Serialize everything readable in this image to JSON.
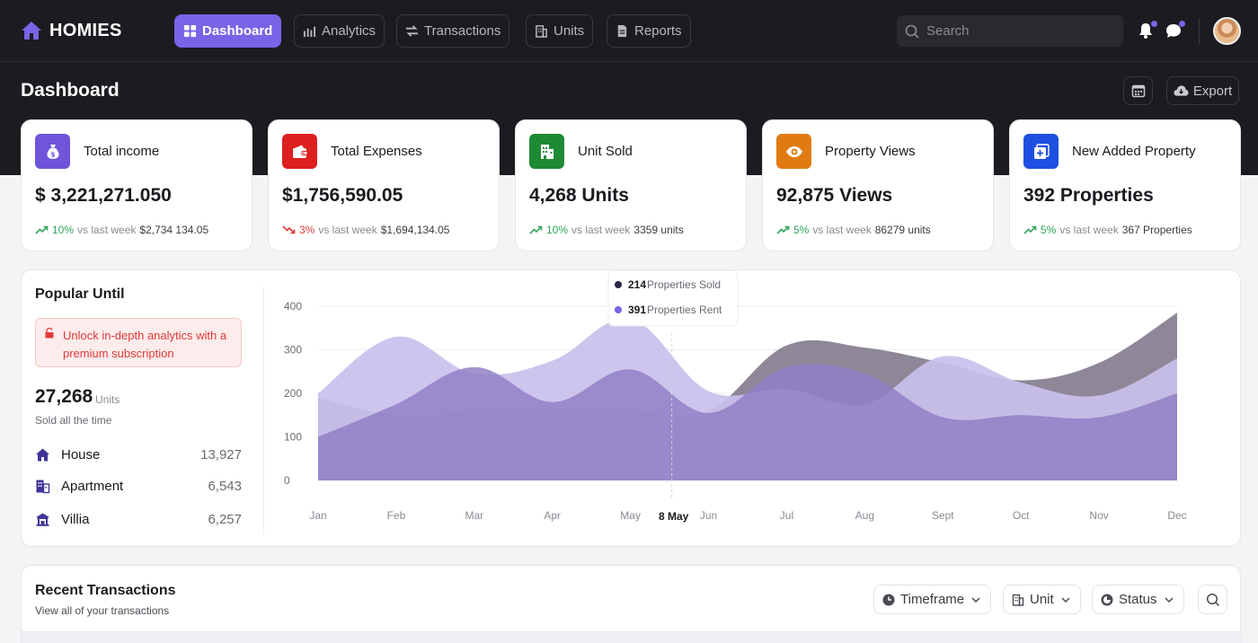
{
  "brand": {
    "name": "HOMIES"
  },
  "nav": [
    {
      "label": "Dashboard",
      "icon": "grid-icon",
      "active": true
    },
    {
      "label": "Analytics",
      "icon": "bar-chart-icon"
    },
    {
      "label": "Transactions",
      "icon": "swap-arrows-icon"
    },
    {
      "label": "Units",
      "icon": "building-icon"
    },
    {
      "label": "Reports",
      "icon": "document-icon"
    }
  ],
  "search": {
    "placeholder": "Search"
  },
  "page": {
    "title": "Dashboard",
    "export_label": "Export"
  },
  "cards": [
    {
      "label": "Total income",
      "value": "$ 3,221,271.050",
      "pct": "10%",
      "trend": "up",
      "vs": "vs last week",
      "ref": "$2,734 134.05",
      "color": "#6f55d9",
      "icon": "money-bag-icon"
    },
    {
      "label": "Total Expenses",
      "value": "$1,756,590.05",
      "pct": "3%",
      "trend": "down",
      "vs": "vs last week",
      "ref": "$1,694,134.05",
      "color": "#dd1f1f",
      "icon": "wallet-icon"
    },
    {
      "label": "Unit Sold",
      "value": "4,268 Units",
      "pct": "10%",
      "trend": "up",
      "vs": "vs last week",
      "ref": "3359 units",
      "color": "#1e8a34",
      "icon": "building-icon"
    },
    {
      "label": "Property Views",
      "value": "92,875 Views",
      "pct": "5%",
      "trend": "up",
      "vs": "vs last week",
      "ref": "86279 units",
      "color": "#e07b12",
      "icon": "eye-icon"
    },
    {
      "label": "New Added Property",
      "value": "392 Properties",
      "pct": "5%",
      "trend": "up",
      "vs": "vs last week",
      "ref": "367 Properties",
      "color": "#1d4fe0",
      "icon": "plus-square-icon"
    }
  ],
  "popular": {
    "title": "Popular Until",
    "alert": "Unlock in-depth analytics with a premium subscription",
    "total": "27,268",
    "unit": "Units",
    "subtitle": "Sold all the time",
    "types": [
      {
        "name": "House",
        "count": "13,927",
        "icon": "house-icon"
      },
      {
        "name": "Apartment",
        "count": "6,543",
        "icon": "apartment-icon"
      },
      {
        "name": "Villia",
        "count": "6,257",
        "icon": "villa-icon"
      }
    ]
  },
  "chart_data": {
    "type": "area",
    "categories": [
      "Jan",
      "Feb",
      "Mar",
      "Apr",
      "May",
      "Jun",
      "Jul",
      "Aug",
      "Sept",
      "Oct",
      "Nov",
      "Dec"
    ],
    "ylim": [
      0,
      400
    ],
    "yticks": [
      "0",
      "100",
      "200",
      "300",
      "400"
    ],
    "series": [
      {
        "name": "Properties Sold",
        "color": "#8f80c6",
        "values": [
          100,
          175,
          260,
          180,
          255,
          155,
          260,
          245,
          145,
          150,
          145,
          200
        ]
      },
      {
        "name": "Properties Rent",
        "color": "#c9c0ec",
        "values": [
          200,
          330,
          245,
          275,
          370,
          205,
          210,
          175,
          285,
          225,
          195,
          280
        ]
      },
      {
        "name": "",
        "color": "#8e8798",
        "values": [
          190,
          150,
          160,
          165,
          160,
          160,
          310,
          305,
          270,
          230,
          270,
          385
        ]
      }
    ],
    "grid": true,
    "tooltip": {
      "date": "8 May",
      "items": [
        {
          "value": "214",
          "label": "Properties Sold",
          "color": "#2b2446"
        },
        {
          "value": "391",
          "label": "Properties Rent",
          "color": "#7a63e6"
        }
      ]
    }
  },
  "transactions": {
    "title": "Recent Transactions",
    "subtitle": "View all of your transactions",
    "filters": [
      {
        "label": "Timeframe",
        "icon": "clock-icon"
      },
      {
        "label": "Unit",
        "icon": "building-icon"
      },
      {
        "label": "Status",
        "icon": "status-icon"
      }
    ]
  }
}
